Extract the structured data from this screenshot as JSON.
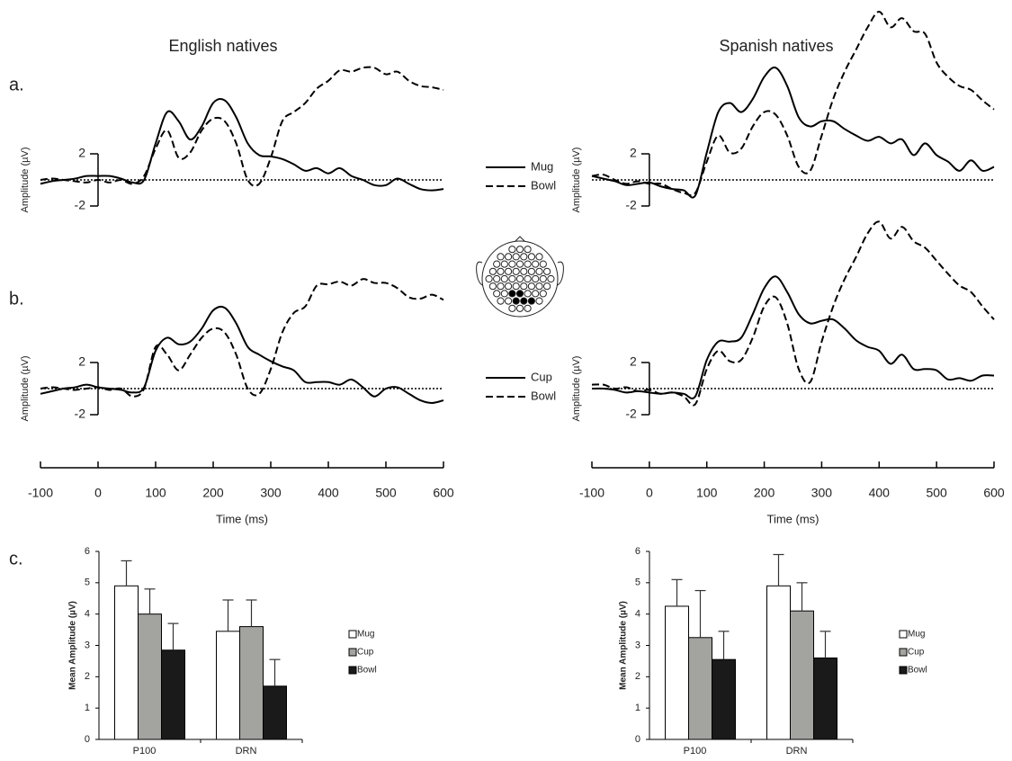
{
  "figure": {
    "columns": [
      "English natives",
      "Spanish natives"
    ],
    "panels": [
      "a.",
      "b.",
      "c."
    ]
  },
  "chart_data": [
    {
      "type": "line",
      "ylabel": "Amplitude (µV)",
      "legend": "right",
      "zero_line": true,
      "x": [
        -100,
        -80,
        -60,
        -40,
        -20,
        0,
        20,
        40,
        60,
        80,
        100,
        120,
        140,
        160,
        180,
        200,
        220,
        240,
        260,
        280,
        300,
        320,
        340,
        360,
        380,
        400,
        420,
        440,
        460,
        480,
        500,
        520,
        540,
        560,
        580,
        600
      ],
      "xlim": [
        -100,
        600
      ],
      "ylim": [
        -3,
        10
      ],
      "yticks": [
        -2,
        2
      ],
      "series": [
        {
          "name": "Mug",
          "color": "#000000",
          "dash": "solid",
          "values": [
            -0.3,
            -0.1,
            0,
            0.1,
            0.3,
            0.3,
            0.3,
            0.1,
            -0.2,
            0,
            2.8,
            5.2,
            4.5,
            3.1,
            4.1,
            5.9,
            6.1,
            4.8,
            2.8,
            1.9,
            1.8,
            1.6,
            1.2,
            0.7,
            0.9,
            0.5,
            0.9,
            0.3,
            0,
            -0.4,
            -0.4,
            0.1,
            -0.3,
            -0.7,
            -0.8,
            -0.7
          ]
        },
        {
          "name": "Bowl",
          "color": "#000000",
          "dash": "dashed",
          "values": [
            0,
            0.1,
            0,
            -0.1,
            -0.2,
            0,
            -0.2,
            0,
            -0.3,
            0.3,
            2.4,
            3.8,
            1.7,
            2.1,
            3.8,
            4.7,
            4.5,
            2.8,
            0,
            -0.3,
            1.7,
            4.5,
            5.2,
            5.9,
            7.0,
            7.6,
            8.4,
            8.3,
            8.6,
            8.6,
            8.1,
            8.3,
            7.6,
            7.2,
            7.1,
            6.9
          ]
        }
      ]
    },
    {
      "type": "line",
      "ylabel": "Amplitude (µV)",
      "zero_line": true,
      "x": [
        -100,
        -80,
        -60,
        -40,
        -20,
        0,
        20,
        40,
        60,
        80,
        100,
        120,
        140,
        160,
        180,
        200,
        220,
        240,
        260,
        280,
        300,
        320,
        340,
        360,
        380,
        400,
        420,
        440,
        460,
        480,
        500,
        520,
        540,
        560,
        580,
        600
      ],
      "xlim": [
        -100,
        600
      ],
      "ylim": [
        -3,
        13
      ],
      "yticks": [
        -2,
        2
      ],
      "series": [
        {
          "name": "Mug",
          "color": "#000000",
          "dash": "solid",
          "values": [
            0.3,
            0.1,
            -0.1,
            -0.4,
            -0.3,
            -0.2,
            -0.5,
            -0.7,
            -0.8,
            -1.2,
            2.1,
            5.2,
            5.9,
            5.2,
            6.2,
            7.9,
            8.6,
            7.2,
            4.8,
            4.1,
            4.5,
            4.5,
            3.9,
            3.4,
            3.0,
            3.3,
            2.8,
            3.1,
            1.9,
            2.8,
            1.9,
            1.4,
            0.7,
            1.5,
            0.7,
            1.0
          ]
        },
        {
          "name": "Bowl",
          "color": "#000000",
          "dash": "dashed",
          "values": [
            0.3,
            0.4,
            0,
            -0.3,
            -0.1,
            -0.3,
            -0.3,
            -0.7,
            -1.0,
            -1.0,
            1.4,
            3.4,
            2.1,
            2.4,
            4.1,
            5.2,
            5.0,
            3.4,
            1.0,
            0.7,
            3.4,
            6.2,
            8.3,
            10.0,
            11.7,
            12.9,
            11.7,
            12.4,
            11.4,
            11.2,
            9.0,
            7.9,
            7.2,
            6.9,
            6.1,
            5.4
          ]
        }
      ]
    },
    {
      "type": "line",
      "ylabel": "Amplitude (µV)",
      "xlabel": "Time (ms)",
      "legend": "right",
      "zero_line": true,
      "x": [
        -100,
        -80,
        -60,
        -40,
        -20,
        0,
        20,
        40,
        60,
        80,
        100,
        120,
        140,
        160,
        180,
        200,
        220,
        240,
        260,
        280,
        300,
        320,
        340,
        360,
        380,
        400,
        420,
        440,
        460,
        480,
        500,
        520,
        540,
        560,
        580,
        600
      ],
      "xlim": [
        -100,
        600
      ],
      "xticks": [
        -100,
        0,
        100,
        200,
        300,
        400,
        500,
        600
      ],
      "ylim": [
        -3,
        10
      ],
      "yticks": [
        -2,
        2
      ],
      "series": [
        {
          "name": "Cup",
          "color": "#000000",
          "dash": "solid",
          "values": [
            -0.4,
            -0.2,
            0,
            0.1,
            0.3,
            0.1,
            0,
            -0.1,
            -0.3,
            0.1,
            2.9,
            3.9,
            3.4,
            3.6,
            4.6,
            6.0,
            6.2,
            5.0,
            3.2,
            2.6,
            2.1,
            1.7,
            1.4,
            0.5,
            0.5,
            0.5,
            0.3,
            0.7,
            0.1,
            -0.6,
            0,
            0.1,
            -0.4,
            -0.9,
            -1.1,
            -0.9
          ]
        },
        {
          "name": "Bowl",
          "color": "#000000",
          "dash": "dashed",
          "values": [
            0,
            0.1,
            0,
            -0.1,
            0,
            0.1,
            -0.1,
            0,
            -0.6,
            0,
            3.2,
            2.6,
            1.4,
            2.6,
            3.9,
            4.6,
            4.3,
            2.6,
            0,
            -0.4,
            1.5,
            4.3,
            5.8,
            6.3,
            7.9,
            8.0,
            8.2,
            7.9,
            8.4,
            8.1,
            8.1,
            7.7,
            7.0,
            6.9,
            7.2,
            6.8
          ]
        }
      ]
    },
    {
      "type": "line",
      "ylabel": "Amplitude (µV)",
      "xlabel": "Time (ms)",
      "zero_line": true,
      "x": [
        -100,
        -80,
        -60,
        -40,
        -20,
        0,
        20,
        40,
        60,
        80,
        100,
        120,
        140,
        160,
        180,
        200,
        220,
        240,
        260,
        280,
        300,
        320,
        340,
        360,
        380,
        400,
        420,
        440,
        460,
        480,
        500,
        520,
        540,
        560,
        580,
        600
      ],
      "xlim": [
        -100,
        600
      ],
      "xticks": [
        -100,
        0,
        100,
        200,
        300,
        400,
        500,
        600
      ],
      "ylim": [
        -3,
        13
      ],
      "yticks": [
        -2,
        2
      ],
      "series": [
        {
          "name": "Cup",
          "color": "#000000",
          "dash": "solid",
          "values": [
            0,
            0,
            -0.1,
            -0.3,
            -0.2,
            -0.3,
            -0.4,
            -0.3,
            -0.4,
            -0.6,
            2.2,
            3.6,
            3.6,
            3.9,
            5.7,
            7.7,
            8.6,
            7.4,
            5.7,
            5.0,
            5.2,
            5.3,
            4.6,
            3.7,
            3.2,
            2.9,
            1.9,
            2.6,
            1.5,
            1.5,
            1.4,
            0.7,
            0.8,
            0.6,
            1.0,
            1.0
          ]
        },
        {
          "name": "Bowl",
          "color": "#000000",
          "dash": "dashed",
          "values": [
            0.3,
            0.3,
            0,
            0.1,
            -0.2,
            -0.1,
            -0.4,
            -0.3,
            -0.6,
            -1.2,
            1.5,
            2.9,
            2.1,
            2.2,
            3.9,
            6.3,
            7.0,
            5.0,
            1.5,
            0.5,
            3.6,
            6.3,
            8.4,
            10.1,
            11.9,
            12.8,
            11.5,
            12.4,
            11.3,
            10.8,
            9.8,
            8.8,
            7.9,
            7.4,
            6.3,
            5.3
          ]
        }
      ]
    },
    {
      "type": "bar",
      "ylabel": "Mean Amplitude (µV)",
      "legend": "right",
      "categories": [
        "P100",
        "DRN"
      ],
      "ylim": [
        0,
        6
      ],
      "yticks": [
        0,
        1,
        2,
        3,
        4,
        5,
        6
      ],
      "series": [
        {
          "name": "Mug",
          "color": "#ffffff",
          "values": [
            4.9,
            3.45
          ],
          "errors": [
            0.8,
            1.0
          ]
        },
        {
          "name": "Cup",
          "color": "#a3a39f",
          "values": [
            4.0,
            3.6
          ],
          "errors": [
            0.8,
            0.85
          ]
        },
        {
          "name": "Bowl",
          "color": "#1a1a1a",
          "values": [
            2.85,
            1.7
          ],
          "errors": [
            0.85,
            0.85
          ]
        }
      ]
    },
    {
      "type": "bar",
      "ylabel": "Mean Amplitude (µV)",
      "legend": "right",
      "categories": [
        "P100",
        "DRN"
      ],
      "ylim": [
        0,
        6
      ],
      "yticks": [
        0,
        1,
        2,
        3,
        4,
        5,
        6
      ],
      "series": [
        {
          "name": "Mug",
          "color": "#ffffff",
          "values": [
            4.25,
            4.9
          ],
          "errors": [
            0.85,
            1.0
          ]
        },
        {
          "name": "Cup",
          "color": "#a3a39f",
          "values": [
            3.25,
            4.1
          ],
          "errors": [
            1.5,
            0.9
          ]
        },
        {
          "name": "Bowl",
          "color": "#1a1a1a",
          "values": [
            2.55,
            2.6
          ],
          "errors": [
            0.9,
            0.85
          ]
        }
      ]
    }
  ]
}
